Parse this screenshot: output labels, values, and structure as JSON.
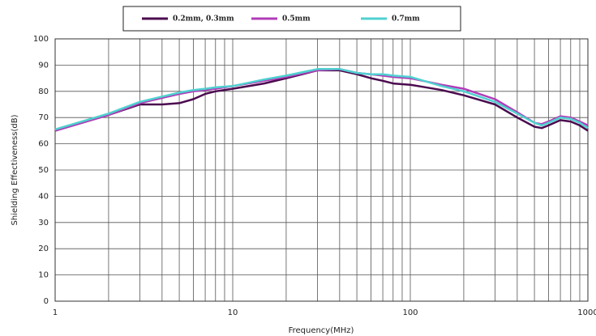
{
  "chart_data": {
    "type": "line",
    "xlabel": "Frequency(MHz)",
    "ylabel": "Shielding Effectiveness(dB)",
    "x": [
      1,
      2,
      3,
      4,
      5,
      6,
      7,
      8,
      10,
      15,
      20,
      30,
      40,
      50,
      60,
      70,
      80,
      100,
      150,
      200,
      300,
      400,
      500,
      550,
      600,
      700,
      800,
      900,
      1000
    ],
    "series": [
      {
        "name": "0.2mm, 0.3mm",
        "color": "#4b0a4f",
        "values": [
          65,
          71,
          75,
          75,
          75.5,
          77,
          79,
          80,
          81,
          83,
          85,
          88,
          88,
          86.5,
          85,
          84,
          83,
          82.5,
          80.5,
          78.5,
          75,
          70,
          66.5,
          66,
          67,
          69,
          68.5,
          67,
          65
        ]
      },
      {
        "name": "0.5mm",
        "color": "#b03cb8",
        "values": [
          65,
          71,
          75.5,
          77.5,
          79,
          80,
          80.5,
          81,
          82,
          84,
          85.5,
          88,
          88.5,
          87,
          86.5,
          86,
          85.5,
          85,
          82.5,
          81,
          77,
          72,
          68,
          67.5,
          68.5,
          70.5,
          70,
          68.5,
          67
        ]
      },
      {
        "name": "0.7mm",
        "color": "#50d0d0",
        "values": [
          65.5,
          71.5,
          76,
          78,
          79.5,
          80.5,
          81,
          81.5,
          82,
          84.5,
          86,
          88.5,
          88.5,
          87,
          86.5,
          86.5,
          86,
          85.5,
          82,
          80,
          76,
          71.5,
          68,
          67,
          68,
          70,
          69.5,
          68,
          66
        ]
      }
    ],
    "xlim": [
      1,
      1000
    ],
    "xticks": [
      1,
      10,
      100,
      1000
    ],
    "xscale": "log",
    "ylim": [
      0,
      100
    ],
    "yticks": [
      0,
      10,
      20,
      30,
      40,
      50,
      60,
      70,
      80,
      90,
      100
    ],
    "grid": true,
    "minor_grid": true,
    "legend": "top"
  }
}
